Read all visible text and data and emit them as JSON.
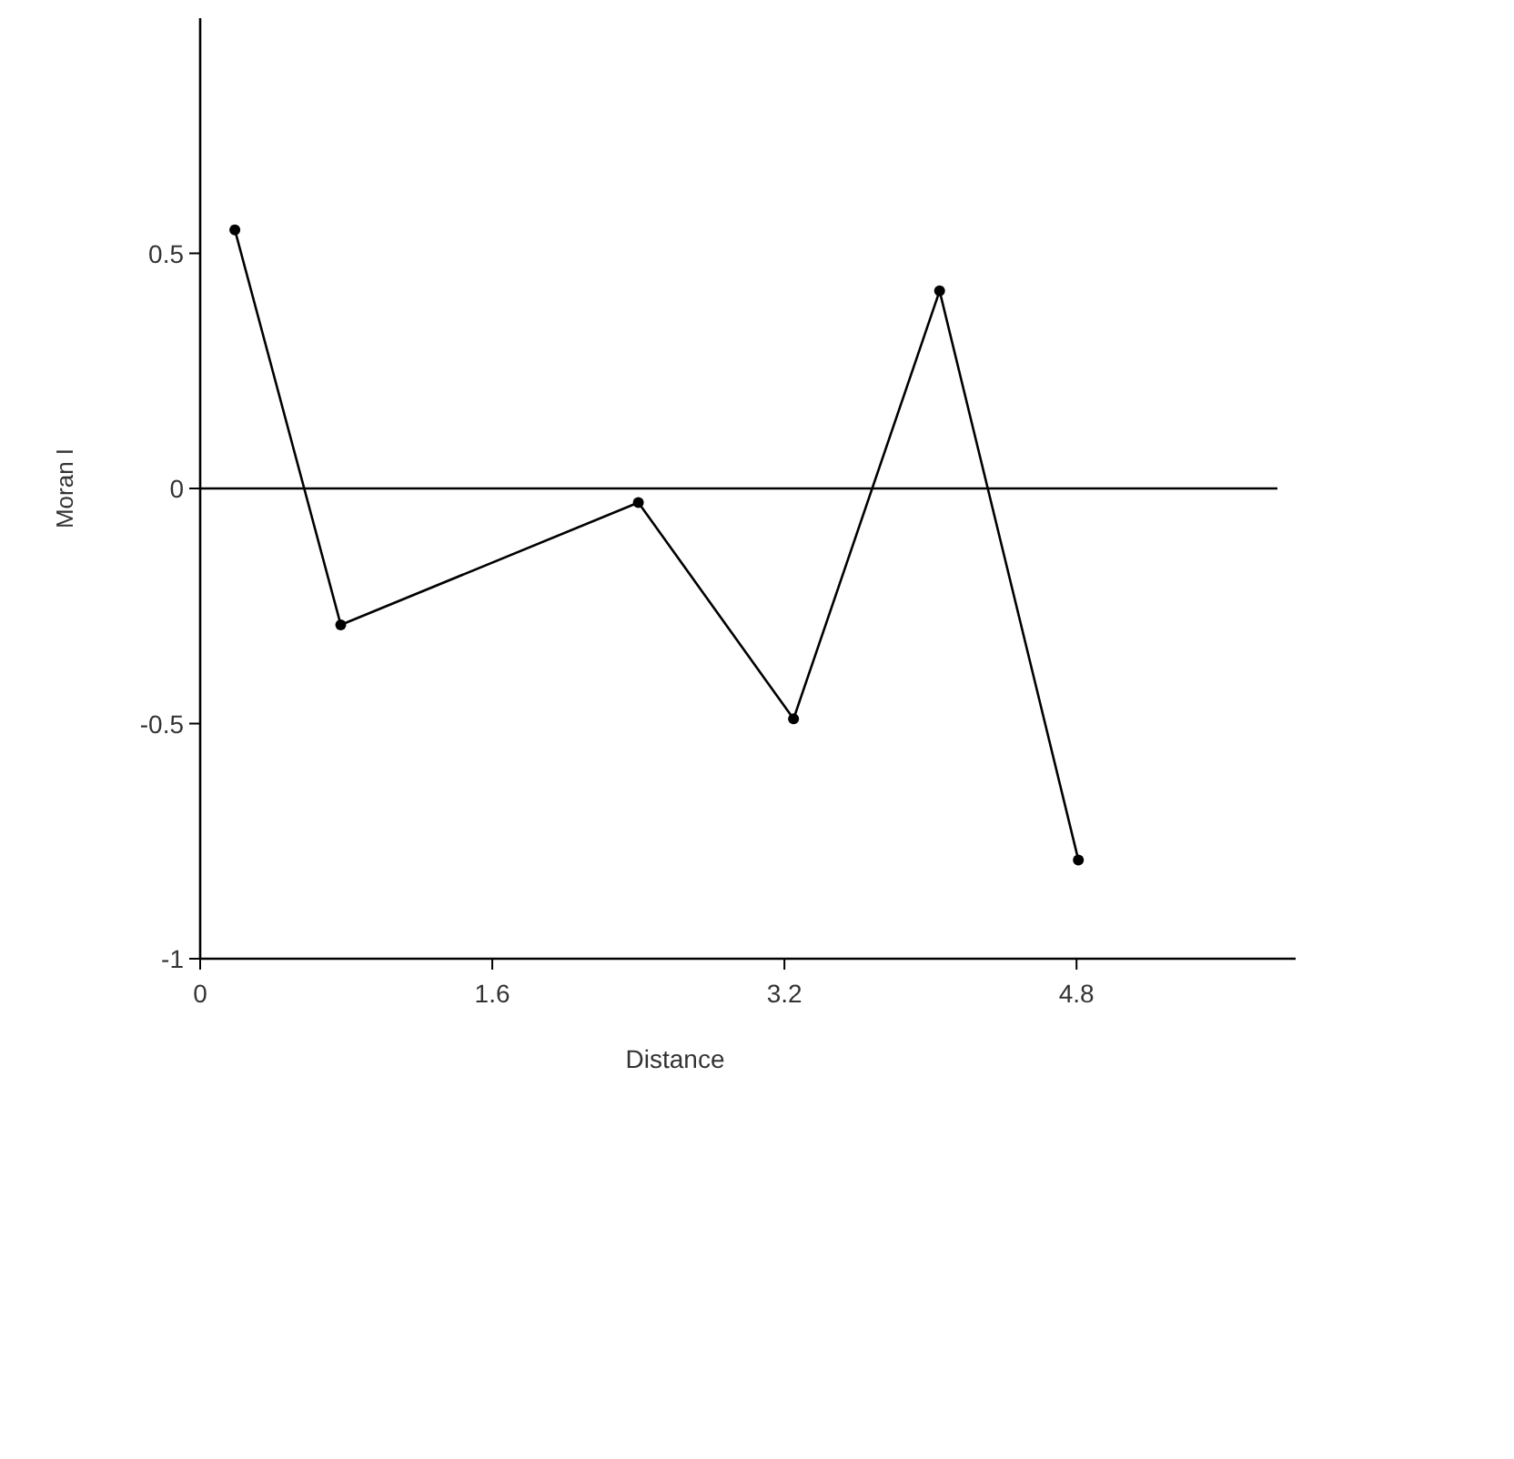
{
  "chart_data": {
    "type": "line",
    "xlabel": "Distance",
    "ylabel": "Moran I",
    "x": [
      0.19,
      0.77,
      2.4,
      3.25,
      4.05,
      4.81
    ],
    "series": [
      {
        "color": "#000000",
        "values": [
          0.55,
          -0.29,
          -0.03,
          -0.49,
          0.42,
          -0.79
        ]
      }
    ],
    "xlim": [
      0,
      6
    ],
    "xticks": [
      0,
      1.6,
      3.2,
      4.8
    ],
    "ylim": [
      -1,
      1
    ],
    "yticks": [
      -1,
      -0.5,
      0,
      0.5
    ],
    "ref_lines": [
      {
        "axis": "y",
        "value": 0,
        "color": "#000000"
      }
    ],
    "marker": "circle",
    "line_style": "solid",
    "grid": false
  }
}
